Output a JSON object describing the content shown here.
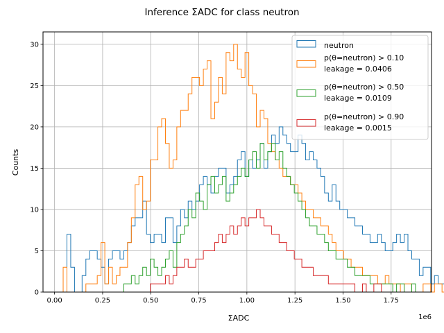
{
  "chart_data": {
    "type": "histogram",
    "title": "Inference ΣADC for class neutron",
    "xlabel": "ΣADC",
    "ylabel": "Counts",
    "x_offset_label": "1e6",
    "xlim": [
      -0.06,
      1.96
    ],
    "ylim": [
      0,
      31.5
    ],
    "x_ticks": [
      0.0,
      0.25,
      0.5,
      0.75,
      1.0,
      1.25,
      1.5,
      1.75
    ],
    "x_tick_labels": [
      "0.00",
      "0.25",
      "0.50",
      "0.75",
      "1.00",
      "1.25",
      "1.50",
      "1.75"
    ],
    "y_ticks": [
      0,
      5,
      10,
      15,
      20,
      25,
      30
    ],
    "y_tick_labels": [
      "0",
      "5",
      "10",
      "15",
      "20",
      "25",
      "30"
    ],
    "grid": true,
    "legend_position": "top-right",
    "bin_start": 0.025,
    "bin_width": 0.0197,
    "series": [
      {
        "name": "neutron",
        "color": "#1f77b4",
        "counts": [
          0,
          0,
          7,
          3,
          0,
          0,
          2,
          4,
          5,
          5,
          4,
          3,
          1,
          4,
          5,
          5,
          4,
          5,
          6,
          8,
          9,
          9,
          11,
          7,
          6,
          7,
          7,
          6,
          9,
          9,
          6,
          8,
          10,
          9,
          11,
          10,
          11,
          13,
          14,
          13,
          12,
          14,
          15,
          15,
          12,
          13,
          14,
          16,
          17,
          14,
          16,
          15,
          16,
          18,
          15,
          17,
          19,
          18,
          20,
          19,
          18,
          17,
          17,
          19,
          18,
          16,
          17,
          16,
          15,
          14,
          12,
          11,
          13,
          11,
          10,
          10,
          9,
          9,
          8,
          8,
          7,
          7,
          6,
          6,
          7,
          6,
          5,
          5,
          6,
          7,
          6,
          7,
          5,
          4,
          4,
          2,
          3,
          3,
          1,
          2,
          1,
          1,
          0,
          0,
          1,
          1,
          0,
          1,
          0,
          1,
          0,
          0,
          0,
          0,
          0,
          0
        ]
      },
      {
        "name": "p(θ=neutron) > 0.10\nleakage = 0.0406",
        "color": "#ff7f0e",
        "counts": [
          0,
          3,
          0,
          0,
          0,
          0,
          0,
          1,
          1,
          1,
          2,
          6,
          1,
          3,
          1,
          2,
          3,
          3,
          6,
          9,
          13,
          14,
          10,
          11,
          16,
          16,
          20,
          21,
          18,
          15,
          16,
          20,
          22,
          22,
          24,
          26,
          26,
          25,
          27,
          28,
          21,
          23,
          26,
          24,
          29,
          28,
          30,
          27,
          26,
          29,
          25,
          24,
          20,
          22,
          21,
          18,
          17,
          16,
          15,
          14,
          14,
          13,
          13,
          12,
          11,
          10,
          10,
          9,
          9,
          8,
          8,
          7,
          6,
          5,
          5,
          4,
          4,
          3,
          3,
          3,
          2,
          2,
          2,
          2,
          1,
          1,
          2,
          1,
          1,
          1,
          0,
          1,
          1,
          0,
          0,
          0,
          1,
          1,
          0,
          1,
          1,
          0,
          0,
          0,
          0,
          0,
          1,
          0,
          0,
          1,
          0,
          0,
          0,
          0,
          0,
          0
        ]
      },
      {
        "name": "p(θ=neutron) > 0.50\nleakage = 0.0109",
        "color": "#2ca02c",
        "counts": [
          0,
          0,
          0,
          0,
          0,
          0,
          0,
          0,
          0,
          0,
          0,
          0,
          0,
          0,
          0,
          0,
          0,
          1,
          1,
          2,
          1,
          2,
          3,
          2,
          4,
          3,
          2,
          3,
          4,
          5,
          3,
          6,
          7,
          8,
          10,
          9,
          12,
          11,
          10,
          13,
          14,
          12,
          13,
          14,
          11,
          12,
          13,
          14,
          15,
          14,
          16,
          17,
          15,
          18,
          16,
          17,
          18,
          16,
          17,
          15,
          14,
          13,
          12,
          11,
          10,
          9,
          8,
          8,
          7,
          7,
          6,
          5,
          5,
          4,
          4,
          4,
          3,
          3,
          2,
          2,
          2,
          2,
          1,
          1,
          1,
          1,
          1,
          1,
          0,
          1,
          1,
          0,
          0,
          1,
          0,
          0,
          0,
          0,
          0,
          0,
          0,
          0,
          0,
          0,
          0,
          0,
          0,
          0,
          0,
          0,
          0,
          0,
          0,
          0,
          0,
          0
        ]
      },
      {
        "name": "p(θ=neutron) > 0.90\nleakage = 0.0015",
        "color": "#d62728",
        "counts": [
          0,
          0,
          0,
          0,
          0,
          0,
          0,
          0,
          0,
          0,
          0,
          0,
          0,
          0,
          0,
          0,
          0,
          0,
          0,
          0,
          0,
          0,
          0,
          0,
          1,
          1,
          1,
          1,
          2,
          1,
          2,
          3,
          3,
          4,
          3,
          3,
          4,
          4,
          5,
          5,
          5,
          6,
          7,
          6,
          7,
          8,
          7,
          8,
          9,
          8,
          9,
          9,
          10,
          9,
          8,
          8,
          7,
          7,
          6,
          6,
          5,
          5,
          4,
          4,
          3,
          3,
          3,
          2,
          2,
          2,
          2,
          1,
          1,
          1,
          1,
          1,
          1,
          1,
          0,
          0,
          1,
          0,
          0,
          1,
          1,
          0,
          0,
          0,
          0,
          0,
          0,
          0,
          0,
          0,
          0,
          0,
          0,
          0,
          0,
          0,
          0,
          0,
          0,
          0,
          0,
          0,
          0,
          0,
          0,
          0,
          0,
          0,
          0,
          0,
          0,
          0
        ]
      }
    ]
  }
}
